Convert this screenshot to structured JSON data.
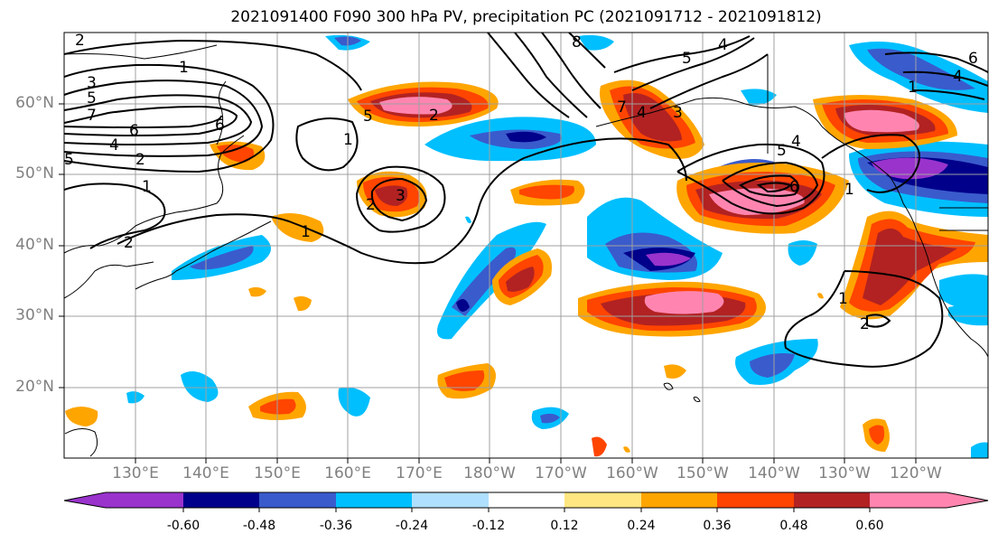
{
  "title": "2021091400 F090 300 hPa PV, precipitation PC (2021091712 - 2021091812)",
  "lat_labels": [
    "60°N",
    "50°N",
    "40°N",
    "30°N",
    "20°N"
  ],
  "lon_labels": [
    "130°E",
    "140°E",
    "150°E",
    "160°E",
    "170°E",
    "180°W",
    "170°W",
    "160°W",
    "150°W",
    "140°W",
    "130°W",
    "120°W"
  ],
  "colorbar": {
    "colors": [
      "#9933cc",
      "#00008b",
      "#3a5bcc",
      "#00bfff",
      "#b0e0ff",
      "#ffffff",
      "#ffe680",
      "#ffa500",
      "#ff4500",
      "#b22222",
      "#ff85b0"
    ],
    "tick_labels": [
      "-0.60",
      "-0.48",
      "-0.36",
      "-0.24",
      "-0.12",
      "0.12",
      "0.24",
      "0.36",
      "0.48",
      "0.60"
    ],
    "levels": [
      -0.6,
      -0.48,
      -0.36,
      -0.24,
      -0.12,
      0.12,
      0.24,
      0.36,
      0.48,
      0.6
    ]
  },
  "contour_labels": [
    "1",
    "2",
    "3",
    "4",
    "5",
    "6",
    "7",
    "8"
  ],
  "pv_contour_levels": [
    1,
    2,
    3,
    4,
    5,
    6,
    7,
    8
  ]
}
